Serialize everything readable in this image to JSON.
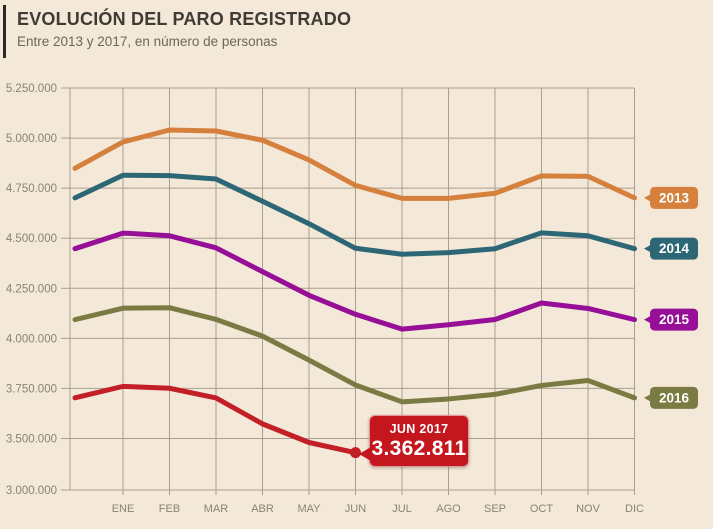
{
  "header": {
    "title": "EVOLUCIÓN DEL PARO REGISTRADO",
    "subtitle": "Entre 2013 y 2017, en número de personas"
  },
  "callout": {
    "label": "JUN 2017",
    "value": "3.362.811",
    "color": "#c3161d"
  },
  "colors": {
    "background": "#f4e9d9",
    "gridline": "#aa9e8e",
    "axis_text": "#8c8274",
    "badge_text": "#ffffff"
  },
  "chart_data": {
    "type": "line",
    "title": "EVOLUCIÓN DEL PARO REGISTRADO",
    "subtitle": "Entre 2013 y 2017, en número de personas",
    "x_labels": [
      "ENE",
      "FEB",
      "MAR",
      "ABR",
      "MAY",
      "JUN",
      "JUL",
      "AGO",
      "SEP",
      "OCT",
      "NOV",
      "DIC"
    ],
    "y_axis": {
      "ticks": [
        {
          "label": "5.250.000",
          "value": 5250000
        },
        {
          "label": "5.000.000",
          "value": 5000000
        },
        {
          "label": "4.750.000",
          "value": 4750000
        },
        {
          "label": "4.500.000",
          "value": 4500000
        },
        {
          "label": "4.250.000",
          "value": 4250000
        },
        {
          "label": "4.000.000",
          "value": 4000000
        },
        {
          "label": "3.750.000",
          "value": 3750000
        },
        {
          "label": "3.500.000",
          "value": 3500000
        },
        {
          "label": "3.000.000",
          "value": 3000000
        }
      ],
      "ylim": [
        3000000,
        5250000
      ],
      "break_below_value": 3500000
    },
    "grid": true,
    "legend_position": "right-badges",
    "series": [
      {
        "name": "2013",
        "color": "#d5813d",
        "badge": true,
        "start": 4848723,
        "values": [
          4980778,
          5040222,
          5035243,
          4989193,
          4890928,
          4763680,
          4698814,
          4698783,
          4724355,
          4811383,
          4808908,
          4701338
        ]
      },
      {
        "name": "2014",
        "color": "#2d6776",
        "badge": true,
        "start": 4701338,
        "values": [
          4814435,
          4812486,
          4795866,
          4684301,
          4572385,
          4449701,
          4419860,
          4427930,
          4447650,
          4526804,
          4512116,
          4447711
        ]
      },
      {
        "name": "2015",
        "color": "#970e97",
        "badge": true,
        "start": 4447711,
        "values": [
          4525691,
          4512153,
          4451939,
          4333016,
          4215031,
          4120304,
          4046276,
          4067955,
          4094042,
          4176369,
          4149298,
          4093508
        ]
      },
      {
        "name": "2016",
        "color": "#797b43",
        "badge": true,
        "start": 4093508,
        "values": [
          4150755,
          4152986,
          4094770,
          4011171,
          3891403,
          3767054,
          3683061,
          3697496,
          3720297,
          3764982,
          3789823,
          3702974
        ]
      },
      {
        "name": "2017",
        "color": "#c21f27",
        "badge": false,
        "end_dot": true,
        "start": 3702974,
        "values": [
          3760231,
          3750876,
          3702317,
          3573036,
          3461128,
          3362811
        ]
      }
    ]
  }
}
